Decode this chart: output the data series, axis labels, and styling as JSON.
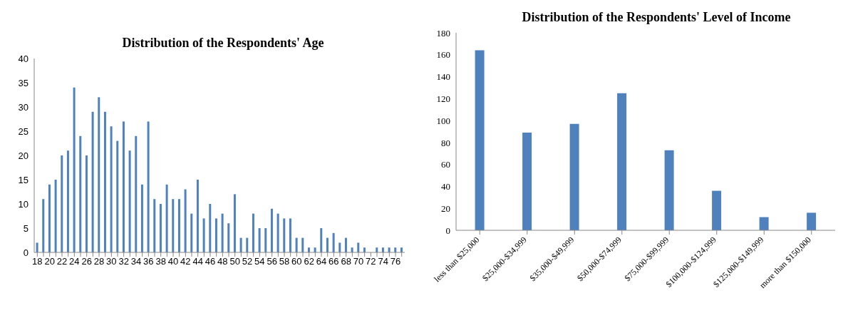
{
  "chart_data": [
    {
      "type": "bar",
      "title": "Distribution of the Respondents' Age",
      "categories": [
        "18",
        null,
        "20",
        null,
        "22",
        null,
        "24",
        null,
        "26",
        null,
        "28",
        null,
        "30",
        null,
        "32",
        null,
        "34",
        null,
        "36",
        null,
        "38",
        null,
        "40",
        null,
        "42",
        null,
        "44",
        null,
        "46",
        null,
        "48",
        null,
        "50",
        null,
        "52",
        null,
        "54",
        null,
        "56",
        null,
        "58",
        null,
        "60",
        null,
        "62",
        null,
        "64",
        null,
        "66",
        null,
        "68",
        null,
        "70",
        null,
        "72",
        null,
        "74",
        null,
        "76",
        null
      ],
      "values": [
        2,
        11,
        14,
        15,
        20,
        21,
        34,
        24,
        20,
        29,
        32,
        29,
        26,
        23,
        27,
        21,
        24,
        14,
        27,
        11,
        10,
        14,
        11,
        11,
        13,
        8,
        15,
        7,
        10,
        7,
        8,
        6,
        12,
        3,
        3,
        8,
        5,
        5,
        9,
        8,
        7,
        7,
        3,
        3,
        1,
        1,
        5,
        3,
        4,
        2,
        3,
        1,
        2,
        1,
        0,
        1,
        1,
        1,
        1,
        1
      ],
      "color": "#4f81bd",
      "ylim": [
        0,
        40
      ],
      "yticks": [
        0,
        5,
        10,
        15,
        20,
        25,
        30,
        35,
        40
      ],
      "grid": false,
      "legend": false
    },
    {
      "type": "bar",
      "title": "Distribution of the Respondents' Level of Income",
      "categories": [
        "less than $25,000",
        "$25,000-$34,999",
        "$35,000-$49,999",
        "$50,000-$74,999",
        "$75,000-$99,999",
        "$100,000-$124,999",
        "$125,000-$149,999",
        "more than $150,000"
      ],
      "values": [
        164,
        89,
        97,
        125,
        73,
        36,
        12,
        16
      ],
      "color": "#4f81bd",
      "ylim": [
        0,
        180
      ],
      "yticks": [
        0,
        20,
        40,
        60,
        80,
        100,
        120,
        140,
        160,
        180
      ],
      "grid": false,
      "legend": false
    }
  ]
}
